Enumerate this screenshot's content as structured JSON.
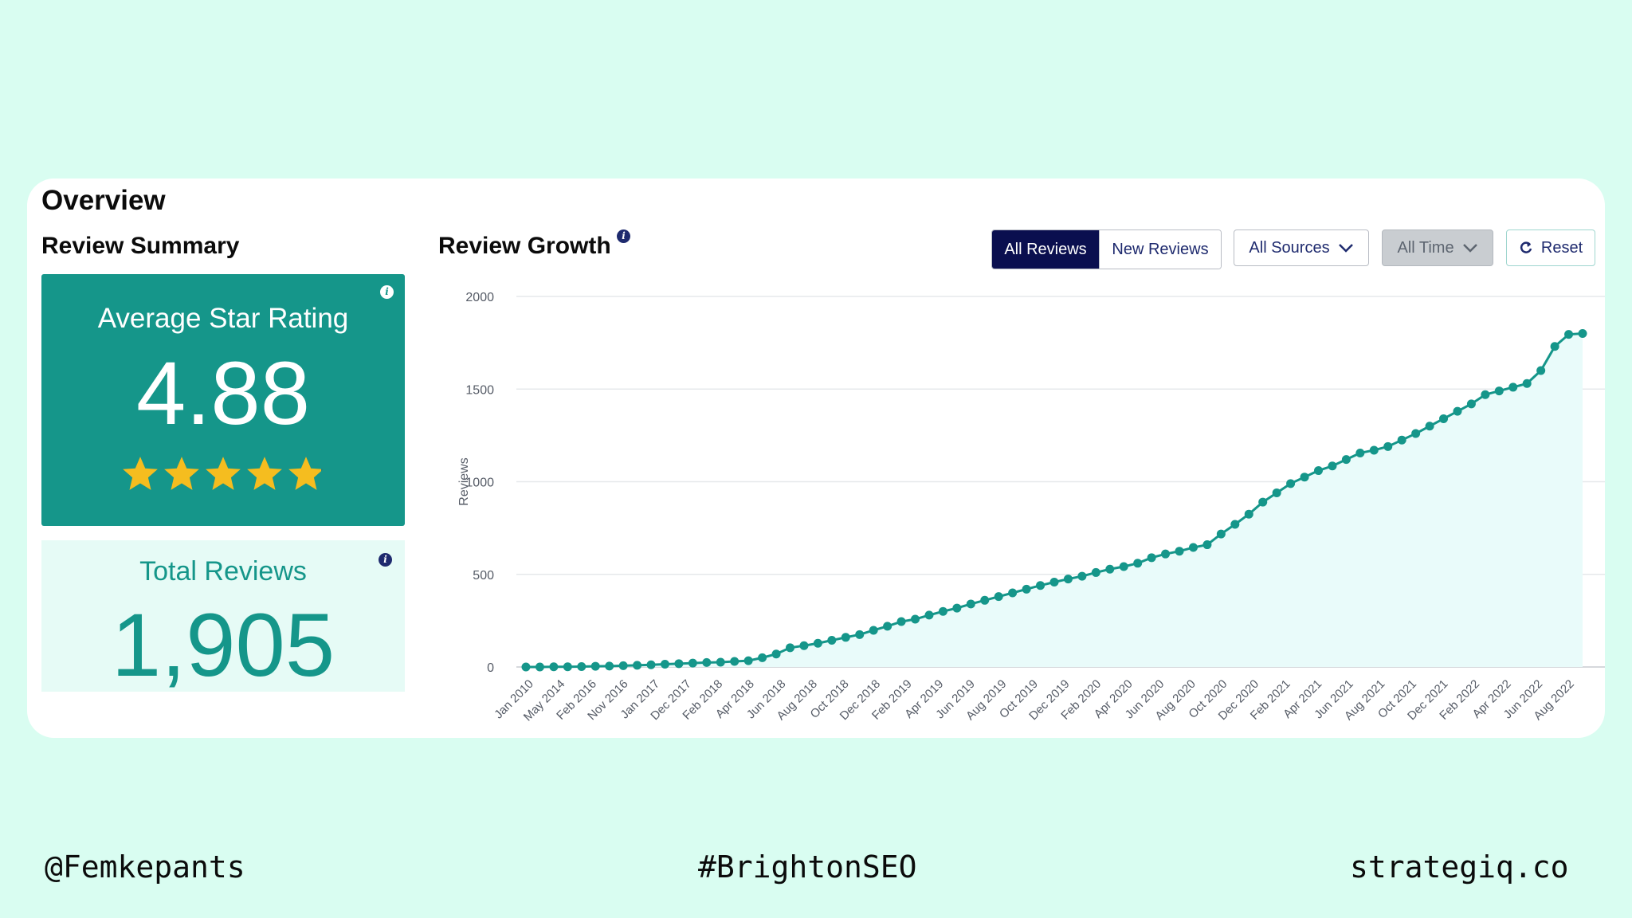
{
  "overview": {
    "title": "Overview"
  },
  "review_summary": {
    "title": "Review Summary",
    "average": {
      "label": "Average Star Rating",
      "value": "4.88",
      "stars_filled": 4.88,
      "stars_total": 5
    },
    "total": {
      "label": "Total Reviews",
      "value": "1,905"
    },
    "info_icon": "info-icon"
  },
  "review_growth": {
    "title": "Review Growth",
    "toggle": {
      "all_label": "All Reviews",
      "new_label": "New Reviews",
      "active": "All Reviews"
    },
    "sources": {
      "label": "All Sources"
    },
    "timeframe": {
      "label": "All Time"
    },
    "reset": {
      "label": "Reset"
    }
  },
  "colors": {
    "teal": "#15968a",
    "navy": "#0a0f4f",
    "background": "#d9fdf1",
    "star": "#f5bd1f"
  },
  "chart_data": {
    "type": "line",
    "title": "",
    "xlabel": "",
    "ylabel": "Reviews",
    "ylim": [
      0,
      2000
    ],
    "yticks": [
      0,
      500,
      1000,
      1500,
      2000
    ],
    "grid": true,
    "x_tick_labels": [
      "Jan 2010",
      "May 2014",
      "Feb 2016",
      "Nov 2016",
      "Jan 2017",
      "Dec 2017",
      "Feb 2018",
      "Apr 2018",
      "Jun 2018",
      "Aug 2018",
      "Oct 2018",
      "Dec 2018",
      "Feb 2019",
      "Apr 2019",
      "Jun 2019",
      "Aug 2019",
      "Oct 2019",
      "Dec 2019",
      "Feb 2020",
      "Apr 2020",
      "Jun 2020",
      "Aug 2020",
      "Oct 2020",
      "Dec 2020",
      "Feb 2021",
      "Apr 2021",
      "Jun 2021",
      "Aug 2021",
      "Oct 2021",
      "Dec 2021",
      "Feb 2022",
      "Apr 2022",
      "Jun 2022",
      "Aug 2022"
    ],
    "values": [
      0,
      0,
      1,
      1,
      2,
      4,
      5,
      7,
      9,
      12,
      15,
      18,
      21,
      24,
      26,
      30,
      34,
      50,
      70,
      104,
      115,
      128,
      144,
      160,
      175,
      198,
      220,
      245,
      258,
      280,
      300,
      318,
      340,
      360,
      380,
      400,
      420,
      440,
      458,
      475,
      490,
      510,
      528,
      542,
      560,
      590,
      610,
      625,
      645,
      660,
      718,
      770,
      825,
      890,
      940,
      990,
      1025,
      1060,
      1085,
      1120,
      1155,
      1170,
      1190,
      1225,
      1260,
      1300,
      1340,
      1380,
      1420,
      1470,
      1490,
      1510,
      1530,
      1600,
      1730,
      1795,
      1800
    ],
    "series": [
      {
        "values_ref": "values",
        "fill": "area"
      }
    ]
  },
  "footer": {
    "handle": "@Femkepants",
    "hashtag": "#BrightonSEO",
    "site": "strategiq.co"
  }
}
